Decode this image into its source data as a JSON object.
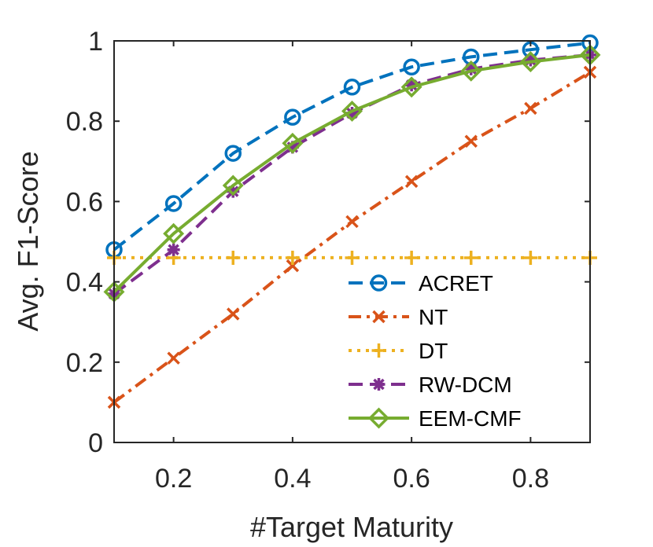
{
  "chart_data": {
    "type": "line",
    "xlabel": "#Target Maturity",
    "ylabel": "Avg. F1-Score",
    "xlim": [
      0.1,
      0.9
    ],
    "ylim": [
      0,
      1
    ],
    "xticks": [
      0.2,
      0.4,
      0.6,
      0.8
    ],
    "xtick_labels": [
      "0.2",
      "0.4",
      "0.6",
      "0.8"
    ],
    "yticks": [
      0,
      0.2,
      0.4,
      0.6,
      0.8,
      1
    ],
    "ytick_labels": [
      "0",
      "0.2",
      "0.4",
      "0.6",
      "0.8",
      "1"
    ],
    "grid": false,
    "legend_position": "bottom-right",
    "x": [
      0.1,
      0.2,
      0.3,
      0.4,
      0.5,
      0.6,
      0.7,
      0.8,
      0.9
    ],
    "series": [
      {
        "name": "ACRET",
        "color": "#0072BD",
        "dash": "dashed",
        "marker": "circle",
        "values": [
          0.48,
          0.595,
          0.72,
          0.81,
          0.885,
          0.935,
          0.96,
          0.978,
          0.995
        ]
      },
      {
        "name": "NT",
        "color": "#D95319",
        "dash": "dashdot",
        "marker": "x",
        "values": [
          0.1,
          0.21,
          0.32,
          0.44,
          0.55,
          0.65,
          0.75,
          0.832,
          0.922
        ]
      },
      {
        "name": "DT",
        "color": "#EDB120",
        "dash": "dotted",
        "marker": "plus",
        "values": [
          0.46,
          0.46,
          0.46,
          0.46,
          0.46,
          0.46,
          0.46,
          0.46,
          0.46
        ]
      },
      {
        "name": "RW-DCM",
        "color": "#7E2F8E",
        "dash": "dashed",
        "marker": "asterisk",
        "values": [
          0.37,
          0.48,
          0.625,
          0.735,
          0.82,
          0.89,
          0.93,
          0.952,
          0.965
        ]
      },
      {
        "name": "EEM-CMF",
        "color": "#77AC30",
        "dash": "solid",
        "marker": "diamond",
        "values": [
          0.375,
          0.52,
          0.64,
          0.745,
          0.825,
          0.885,
          0.925,
          0.948,
          0.965
        ]
      }
    ]
  }
}
